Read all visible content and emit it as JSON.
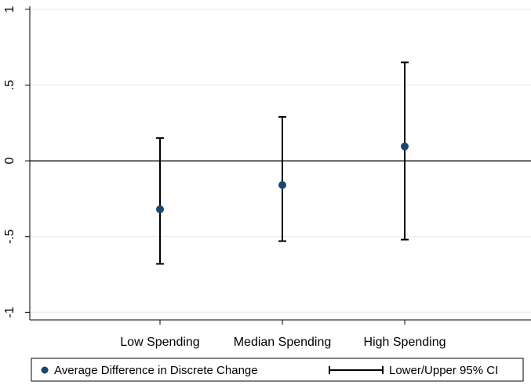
{
  "chart_data": {
    "type": "scatter",
    "subtype": "point-estimate-with-confidence-intervals",
    "categories": [
      "Low Spending",
      "Median Spending",
      "High Spending"
    ],
    "series": [
      {
        "name": "Average Difference in Discrete Change",
        "values": [
          -0.32,
          -0.16,
          0.095
        ],
        "color": "#1a476f"
      },
      {
        "name": "Lower/Upper 95% CI",
        "lower": [
          -0.68,
          -0.53,
          -0.52
        ],
        "upper": [
          0.15,
          0.29,
          0.65
        ],
        "color": "#000000"
      }
    ],
    "y_ticks": [
      {
        "value": 1,
        "label": "1"
      },
      {
        "value": 0.5,
        "label": ".5"
      },
      {
        "value": 0,
        "label": "0"
      },
      {
        "value": -0.5,
        "label": "-.5"
      },
      {
        "value": -1,
        "label": "-1"
      }
    ],
    "ylim": [
      -1.05,
      1.02
    ],
    "reference_line": 0,
    "grid": true,
    "legend_position": "bottom",
    "xlabel": "",
    "ylabel": "",
    "title": ""
  }
}
